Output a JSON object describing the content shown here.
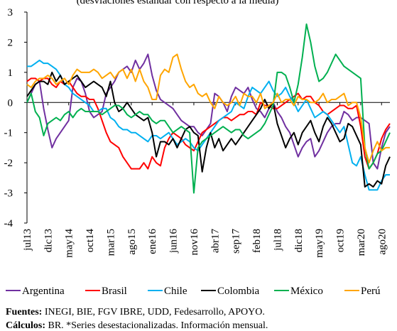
{
  "chart_data": {
    "type": "line",
    "subtitle": "(desviaciones estándar con respecto a la media)",
    "categories": [
      "jul13",
      null,
      null,
      null,
      null,
      "dic13",
      null,
      null,
      null,
      null,
      "may14",
      null,
      null,
      null,
      null,
      "oct14",
      null,
      null,
      null,
      null,
      "mar15",
      null,
      null,
      null,
      null,
      "ago15",
      null,
      null,
      null,
      null,
      "ene16",
      null,
      null,
      null,
      null,
      "jun16",
      null,
      null,
      null,
      null,
      "nov16",
      null,
      null,
      null,
      null,
      "abr17",
      null,
      null,
      null,
      null,
      "sep17",
      null,
      null,
      null,
      null,
      "feb18",
      null,
      null,
      null,
      null,
      "jul18",
      null,
      null,
      null,
      null,
      "dic18",
      null,
      null,
      null,
      null,
      "may19",
      null,
      null,
      null,
      null,
      "oct19",
      null,
      null,
      null,
      null,
      "mar20",
      null,
      null,
      null,
      null,
      "ago20",
      null,
      null
    ],
    "ylim": [
      -4,
      3
    ],
    "yticks": [
      -4,
      -3,
      -2,
      -1,
      0,
      1,
      2,
      3
    ],
    "series": [
      {
        "name": "Argentina",
        "color": "#7030a0",
        "values": [
          0.0,
          0.3,
          0.6,
          0.7,
          -0.2,
          -0.9,
          -1.5,
          -1.2,
          -1.0,
          -0.8,
          -0.6,
          0.5,
          0.8,
          0.7,
          0.3,
          -0.3,
          -0.5,
          -0.4,
          -0.3,
          0.3,
          0.5,
          0.7,
          1.0,
          1.1,
          1.2,
          1.0,
          1.4,
          1.1,
          1.3,
          1.6,
          0.9,
          0.4,
          0.1,
          0.0,
          -0.1,
          -0.2,
          -0.4,
          -0.6,
          -0.7,
          -0.8,
          -0.8,
          -1.0,
          -1.1,
          -0.9,
          -0.7,
          0.3,
          0.2,
          0.0,
          -0.3,
          0.2,
          0.5,
          0.4,
          0.3,
          0.5,
          0.1,
          -0.2,
          -0.3,
          -0.5,
          -0.2,
          0.0,
          -0.3,
          -0.5,
          -0.8,
          -1.0,
          -1.4,
          -1.8,
          -1.5,
          -1.3,
          -1.2,
          -1.8,
          -1.6,
          -1.3,
          -1.0,
          -0.8,
          -0.7,
          -0.7,
          -0.3,
          -0.4,
          -0.6,
          -0.5,
          -0.5,
          -0.6,
          -0.7,
          -2.0,
          -2.2,
          -1.5,
          -1.0,
          -0.8
        ]
      },
      {
        "name": "Brasil",
        "color": "#ff0000",
        "values": [
          0.7,
          0.8,
          0.8,
          0.7,
          0.8,
          0.8,
          0.6,
          0.5,
          0.7,
          0.6,
          0.7,
          0.5,
          0.3,
          0.2,
          0.2,
          0.1,
          0.1,
          -0.2,
          -0.6,
          -1.0,
          -1.3,
          -1.4,
          -1.5,
          -1.8,
          -2.0,
          -2.2,
          -2.2,
          -2.2,
          -2.0,
          -2.2,
          -1.8,
          -2.0,
          -2.1,
          -1.5,
          -1.2,
          -1.0,
          -1.1,
          -1.2,
          -1.4,
          -1.5,
          -1.6,
          -1.3,
          -1.0,
          -0.9,
          -0.8,
          -0.7,
          -0.6,
          -0.5,
          -0.5,
          -0.6,
          -0.5,
          -0.4,
          -0.4,
          -0.3,
          -0.3,
          -0.4,
          0.0,
          -0.1,
          -0.1,
          -0.2,
          -0.2,
          -0.1,
          0.0,
          0.1,
          0.2,
          0.3,
          0.1,
          0.2,
          0.2,
          0.0,
          -0.1,
          -0.3,
          -0.4,
          -0.3,
          -0.2,
          -0.1,
          -0.1,
          -0.2,
          -0.2,
          -0.1,
          -0.8,
          -1.8,
          -2.2,
          -2.0,
          -1.7,
          -1.2,
          -0.9,
          -0.7
        ]
      },
      {
        "name": "Chile",
        "color": "#00b0f0",
        "values": [
          1.2,
          1.2,
          1.3,
          1.4,
          1.3,
          1.3,
          1.2,
          1.1,
          0.9,
          0.6,
          0.5,
          0.3,
          0.2,
          0.1,
          0.0,
          -0.1,
          -0.3,
          -0.3,
          -0.2,
          -0.2,
          -0.5,
          -0.6,
          -0.8,
          -0.9,
          -0.9,
          -1.0,
          -1.0,
          -1.1,
          -1.2,
          -1.3,
          -1.1,
          -1.1,
          -1.2,
          -1.1,
          -1.0,
          -1.2,
          -1.4,
          -1.3,
          -1.2,
          -1.3,
          -1.5,
          -1.6,
          -1.4,
          -1.2,
          -1.0,
          -0.8,
          -0.6,
          -0.5,
          -0.4,
          -0.3,
          0.0,
          -0.1,
          -0.2,
          0.2,
          0.5,
          0.4,
          0.3,
          0.5,
          0.7,
          0.4,
          0.2,
          0.3,
          0.5,
          0.2,
          0.0,
          -0.3,
          -0.1,
          0.1,
          -0.2,
          -0.5,
          -0.4,
          -0.3,
          -0.4,
          -0.6,
          -0.8,
          -1.0,
          -0.8,
          -1.4,
          -2.0,
          -2.1,
          -1.8,
          -2.4,
          -2.9,
          -2.9,
          -2.9,
          -2.6,
          -2.4,
          -2.4
        ]
      },
      {
        "name": "Colombia",
        "color": "#000000",
        "values": [
          0.2,
          0.4,
          0.6,
          0.7,
          0.7,
          0.6,
          1.0,
          0.7,
          0.9,
          0.6,
          0.7,
          0.8,
          0.9,
          0.7,
          0.5,
          0.6,
          0.7,
          0.6,
          0.5,
          0.2,
          0.7,
          0.0,
          -0.3,
          -0.2,
          0.0,
          -0.2,
          -0.4,
          -0.5,
          -0.6,
          -0.5,
          -1.0,
          -1.8,
          -1.3,
          -1.3,
          -1.4,
          -1.2,
          -1.5,
          -1.2,
          -0.9,
          -0.8,
          -1.0,
          -1.1,
          -2.3,
          -1.5,
          -1.0,
          -1.5,
          -1.2,
          -1.6,
          -1.4,
          -1.2,
          -1.4,
          -1.2,
          -1.0,
          -0.8,
          -0.6,
          -0.4,
          -0.2,
          0.1,
          -0.2,
          0.0,
          -0.7,
          -1.1,
          -1.5,
          -1.2,
          -1.0,
          -1.4,
          -1.0,
          -0.8,
          -0.6,
          -1.0,
          -1.3,
          -0.8,
          -0.5,
          -0.7,
          -1.0,
          -1.3,
          -1.2,
          -0.7,
          -0.8,
          -1.1,
          -1.4,
          -2.8,
          -2.7,
          -2.8,
          -2.6,
          -2.7,
          -2.1,
          -1.8
        ]
      },
      {
        "name": "México",
        "color": "#00b050",
        "values": [
          0.0,
          0.3,
          -0.3,
          -0.5,
          -1.1,
          -0.7,
          -0.6,
          -0.5,
          -0.6,
          -0.4,
          -0.3,
          -0.5,
          -0.3,
          -0.2,
          -0.3,
          -0.3,
          -0.3,
          -0.3,
          -0.4,
          -0.3,
          -0.2,
          -0.1,
          -0.1,
          -0.2,
          -0.4,
          -0.5,
          -0.4,
          -0.3,
          -0.4,
          -0.4,
          -0.6,
          -0.7,
          -0.6,
          -0.6,
          -0.8,
          -1.0,
          -0.9,
          -0.8,
          -0.9,
          -1.0,
          -3.0,
          -1.5,
          -1.3,
          -1.2,
          -1.1,
          -1.0,
          -0.9,
          -0.8,
          -0.9,
          -1.0,
          -0.9,
          -0.9,
          -1.1,
          -1.2,
          -1.1,
          -1.0,
          -0.9,
          -0.7,
          -0.4,
          -0.1,
          1.0,
          1.0,
          0.9,
          0.5,
          0.0,
          0.6,
          1.5,
          2.6,
          2.0,
          1.2,
          0.7,
          0.8,
          1.0,
          1.3,
          1.6,
          1.4,
          1.2,
          1.1,
          1.0,
          0.9,
          0.8,
          -1.5,
          -2.2,
          -2.0,
          -1.7,
          -1.6,
          -1.3,
          -1.0
        ]
      },
      {
        "name": "Perú",
        "color": "#ffa500",
        "values": [
          0.6,
          0.5,
          0.7,
          0.8,
          0.8,
          0.9,
          0.8,
          0.6,
          0.7,
          0.8,
          0.6,
          0.9,
          1.1,
          1.0,
          1.0,
          1.0,
          1.1,
          1.0,
          0.8,
          0.9,
          1.0,
          0.8,
          1.0,
          1.1,
          0.8,
          1.1,
          0.7,
          1.1,
          0.7,
          0.5,
          0.1,
          0.1,
          0.9,
          1.1,
          1.0,
          1.5,
          1.6,
          1.1,
          0.7,
          0.5,
          0.6,
          0.3,
          0.2,
          0.3,
          0.0,
          -0.2,
          0.2,
          0.0,
          -0.1,
          0.0,
          0.2,
          -0.1,
          0.3,
          0.2,
          0.2,
          0.0,
          0.3,
          -0.2,
          -0.1,
          0.0,
          0.3,
          0.0,
          0.1,
          0.1,
          -0.1,
          0.2,
          0.1,
          0.1,
          0.0,
          0.0,
          0.1,
          0.3,
          0.0,
          0.1,
          0.1,
          0.2,
          0.3,
          -0.1,
          0.0,
          0.0,
          -0.5,
          -1.5,
          -2.0,
          -1.6,
          -1.3,
          -1.6,
          -1.5,
          -1.5
        ]
      }
    ],
    "sources_label": "Fuentes:",
    "sources": "INEGI, BIE, FGV IBRE, UDD, Fedesarrollo, APOYO.",
    "calc_label": "Cálculos:",
    "calc": "BR. *Series desestacionalizadas. Información mensual."
  }
}
